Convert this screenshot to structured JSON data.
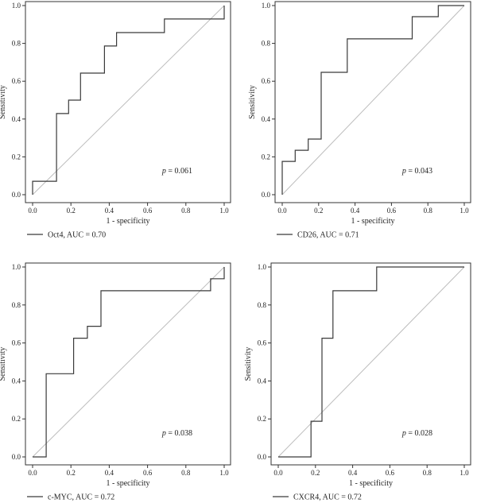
{
  "chart_data": [
    {
      "type": "line",
      "xlabel": "1 - specificity",
      "ylabel": "Sensitivity",
      "xlim": [
        0,
        1
      ],
      "ylim": [
        0,
        1
      ],
      "xticks": [
        "0.0",
        "0.2",
        "0.4",
        "0.6",
        "0.8",
        "1.0"
      ],
      "yticks": [
        "0.0",
        "0.2",
        "0.4",
        "0.6",
        "0.8",
        "1.0"
      ],
      "grid": false,
      "legend_placement": "bottom-left",
      "p_label": "p",
      "p_value": "= 0.061",
      "series": [
        {
          "name": "Oct4, AUC = 0.70",
          "x": [
            0,
            0,
            0.125,
            0.125,
            0.188,
            0.188,
            0.25,
            0.25,
            0.375,
            0.375,
            0.438,
            0.438,
            0.688,
            0.688,
            1.0,
            1.0
          ],
          "y": [
            0,
            0.071,
            0.071,
            0.429,
            0.429,
            0.5,
            0.5,
            0.643,
            0.643,
            0.786,
            0.786,
            0.857,
            0.857,
            0.929,
            0.929,
            1.0
          ]
        }
      ],
      "reference_line": {
        "x": [
          0,
          1
        ],
        "y": [
          0,
          1
        ]
      }
    },
    {
      "type": "line",
      "xlabel": "1 - specificity",
      "ylabel": "Sensitivity",
      "xlim": [
        0,
        1
      ],
      "ylim": [
        0,
        1
      ],
      "xticks": [
        "0.0",
        "0.2",
        "0.4",
        "0.6",
        "0.8",
        "1.0"
      ],
      "yticks": [
        "0.0",
        "0.2",
        "0.4",
        "0.6",
        "0.8",
        "1.0"
      ],
      "grid": false,
      "legend_placement": "bottom-left",
      "p_label": "p",
      "p_value": "= 0.043",
      "series": [
        {
          "name": "CD26, AUC = 0.71",
          "x": [
            0,
            0,
            0.071,
            0.071,
            0.143,
            0.143,
            0.214,
            0.214,
            0.357,
            0.357,
            0.714,
            0.714,
            0.857,
            0.857,
            1.0
          ],
          "y": [
            0,
            0.176,
            0.176,
            0.235,
            0.235,
            0.294,
            0.294,
            0.647,
            0.647,
            0.824,
            0.824,
            0.941,
            0.941,
            1.0,
            1.0
          ]
        }
      ],
      "reference_line": {
        "x": [
          0,
          1
        ],
        "y": [
          0,
          1
        ]
      }
    },
    {
      "type": "line",
      "xlabel": "1 - specificity",
      "ylabel": "Sensitivity",
      "xlim": [
        0,
        1
      ],
      "ylim": [
        0,
        1
      ],
      "xticks": [
        "0.0",
        "0.2",
        "0.4",
        "0.6",
        "0.8",
        "1.0"
      ],
      "yticks": [
        "0.0",
        "0.2",
        "0.4",
        "0.6",
        "0.8",
        "1.0"
      ],
      "grid": false,
      "legend_placement": "bottom-left",
      "p_label": "p",
      "p_value": "= 0.038",
      "series": [
        {
          "name": "c-MYC, AUC = 0.72",
          "x": [
            0,
            0.071,
            0.071,
            0.214,
            0.214,
            0.286,
            0.286,
            0.357,
            0.357,
            0.929,
            0.929,
            1.0,
            1.0
          ],
          "y": [
            0,
            0,
            0.438,
            0.438,
            0.625,
            0.625,
            0.688,
            0.688,
            0.875,
            0.875,
            0.938,
            0.938,
            1.0
          ]
        }
      ],
      "reference_line": {
        "x": [
          0,
          1
        ],
        "y": [
          0,
          1
        ]
      }
    },
    {
      "type": "line",
      "xlabel": "1 - specificity",
      "ylabel": "Sensitivity",
      "xlim": [
        0,
        1
      ],
      "ylim": [
        0,
        1
      ],
      "xticks": [
        "0.0",
        "0.2",
        "0.4",
        "0.6",
        "0.8",
        "1.0"
      ],
      "yticks": [
        "0.0",
        "0.2",
        "0.4",
        "0.6",
        "0.8",
        "1.0"
      ],
      "grid": false,
      "legend_placement": "bottom-left",
      "p_label": "p",
      "p_value": "= 0.028",
      "series": [
        {
          "name": "CXCR4, AUC = 0.72",
          "x": [
            0,
            0.176,
            0.176,
            0.235,
            0.235,
            0.294,
            0.294,
            0.529,
            0.529,
            1.0
          ],
          "y": [
            0,
            0,
            0.188,
            0.188,
            0.625,
            0.625,
            0.875,
            0.875,
            1.0,
            1.0
          ]
        }
      ],
      "reference_line": {
        "x": [
          0,
          1
        ],
        "y": [
          0,
          1
        ]
      }
    }
  ],
  "colors": {
    "curve": "#3a3a3a",
    "reference": "#bdbdbd",
    "axis": "#333333",
    "text": "#222222"
  }
}
